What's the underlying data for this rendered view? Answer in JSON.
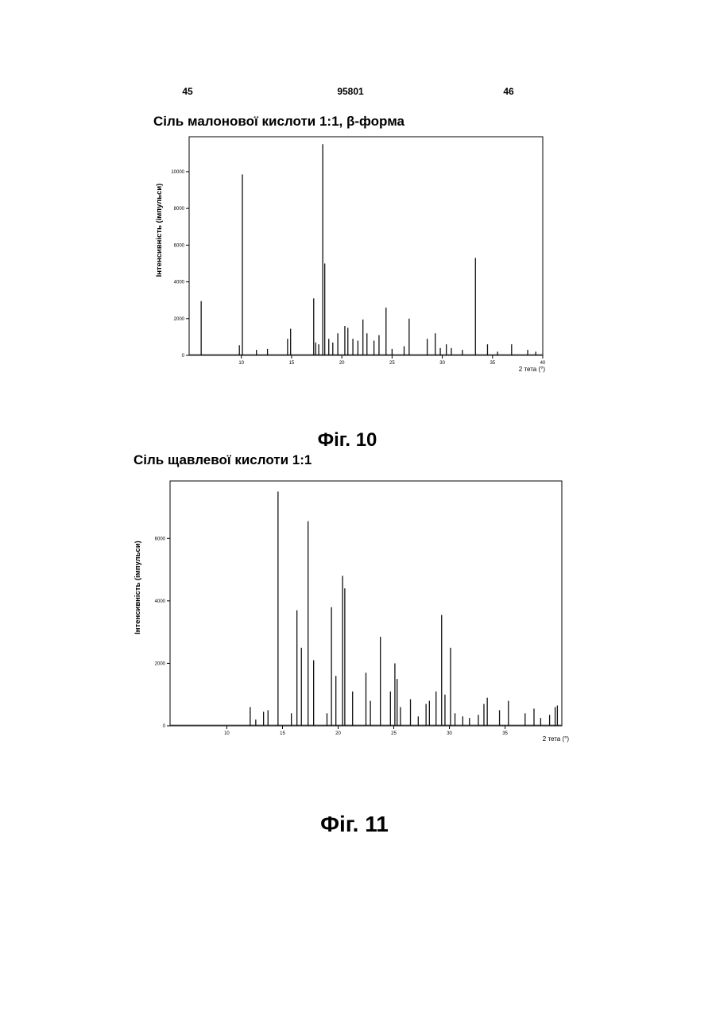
{
  "header": {
    "left": "45",
    "center": "95801",
    "right": "46"
  },
  "figures": [
    "Фіг. 10",
    "Фіг. 11"
  ],
  "chart_data": [
    {
      "type": "stick",
      "title": "Сіль малонової кислоти 1:1, β-форма",
      "y_label": "Інтенсивність (імпульси)",
      "x_label": "2 тета (°)",
      "xlim": [
        4.8,
        40
      ],
      "ylim": [
        0,
        11900
      ],
      "xticks": [
        10,
        15,
        20,
        25,
        30,
        35,
        40
      ],
      "yticks": [
        0,
        2000,
        4000,
        6000,
        8000,
        10000
      ],
      "color": "#111",
      "x": [
        6.0,
        9.8,
        10.1,
        11.5,
        12.6,
        14.6,
        14.9,
        17.2,
        17.4,
        17.7,
        18.1,
        18.3,
        18.7,
        19.1,
        19.6,
        20.3,
        20.6,
        21.1,
        21.6,
        22.1,
        22.5,
        23.2,
        23.7,
        24.4,
        25.0,
        26.2,
        26.7,
        28.5,
        29.3,
        29.8,
        30.4,
        30.9,
        32.0,
        33.3,
        34.5,
        35.5,
        36.9,
        38.5,
        39.3
      ],
      "values": [
        2950,
        550,
        9850,
        300,
        350,
        900,
        1450,
        3100,
        700,
        600,
        11500,
        5000,
        900,
        700,
        1200,
        1600,
        1500,
        900,
        800,
        1950,
        1200,
        800,
        1100,
        2600,
        350,
        500,
        2000,
        900,
        1200,
        400,
        600,
        400,
        300,
        5300,
        600,
        200,
        600,
        300,
        200
      ]
    },
    {
      "type": "stick",
      "title": "Сіль щавлевої кислоти 1:1",
      "y_label": "Інтенсивність (імпульси)",
      "x_label": "2 тета (°)",
      "xlim": [
        4.9,
        40.1
      ],
      "ylim": [
        0,
        7840
      ],
      "xticks": [
        10,
        15,
        20,
        25,
        30,
        35
      ],
      "yticks": [
        0,
        2000,
        4000,
        6000
      ],
      "color": "#111",
      "x": [
        12.1,
        12.6,
        13.3,
        13.7,
        14.6,
        15.8,
        16.3,
        16.7,
        17.3,
        17.8,
        19.0,
        19.4,
        19.8,
        20.4,
        20.6,
        21.3,
        22.5,
        22.9,
        23.8,
        24.7,
        25.1,
        25.3,
        25.6,
        26.5,
        27.2,
        27.9,
        28.2,
        28.8,
        29.3,
        29.6,
        30.1,
        30.5,
        31.2,
        31.8,
        32.6,
        33.1,
        33.4,
        34.5,
        35.3,
        36.8,
        37.6,
        38.2,
        39.0,
        39.5,
        39.7
      ],
      "values": [
        600,
        200,
        450,
        500,
        7500,
        400,
        3700,
        2500,
        6550,
        2100,
        400,
        3800,
        1600,
        4800,
        4400,
        1100,
        1700,
        800,
        2850,
        1100,
        2000,
        1500,
        600,
        850,
        300,
        700,
        800,
        1100,
        3550,
        1000,
        2500,
        400,
        300,
        250,
        350,
        700,
        900,
        500,
        800,
        400,
        550,
        250,
        350,
        600,
        650
      ]
    }
  ]
}
